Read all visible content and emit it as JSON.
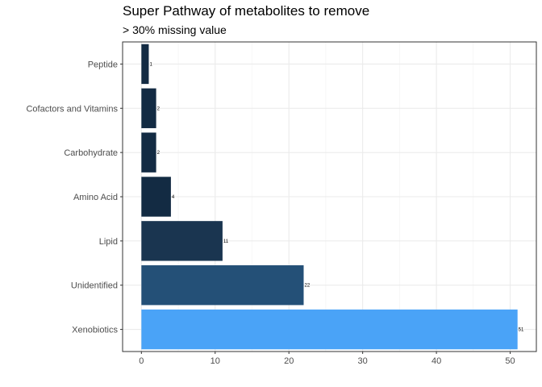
{
  "chart_data": {
    "type": "bar",
    "orientation": "horizontal",
    "title": "Super Pathway of metabolites to remove",
    "subtitle": "> 30% missing value",
    "xlabel": "",
    "ylabel": "",
    "categories": [
      "Peptide",
      "Cofactors and Vitamins",
      "Carbohydrate",
      "Amino Acid",
      "Lipid",
      "Unidentified",
      "Xenobiotics"
    ],
    "values": [
      1,
      2,
      2,
      4,
      11,
      22,
      51
    ],
    "data_labels": [
      "1",
      "2",
      "2",
      "4",
      "11",
      "22",
      "51"
    ],
    "bar_colors": [
      "#132B43",
      "#132B43",
      "#132B43",
      "#132B43",
      "#1A3550",
      "#245077",
      "#4AA3F7"
    ],
    "xlim": [
      -2.55,
      53.55
    ],
    "x_ticks": [
      0,
      10,
      20,
      30,
      40,
      50
    ],
    "x_tick_labels": [
      "0",
      "10",
      "20",
      "30",
      "40",
      "50"
    ],
    "grid": true,
    "legend": "none"
  }
}
